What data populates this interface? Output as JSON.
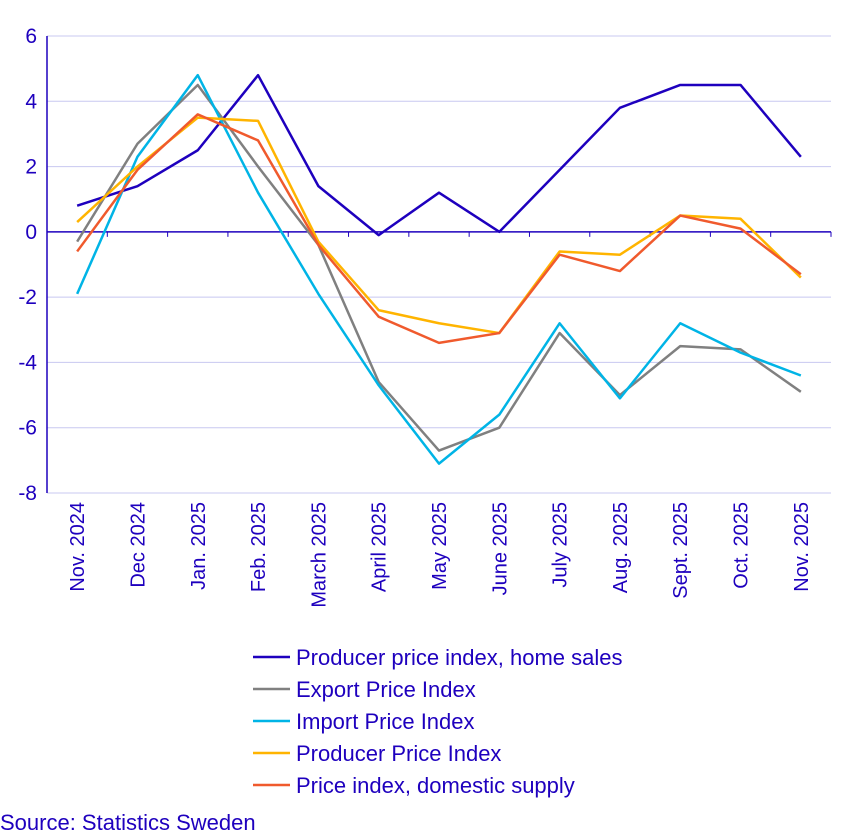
{
  "chart_data": {
    "type": "line",
    "categories": [
      "Nov. 2024",
      "Dec 2024",
      "Jan. 2025",
      "Feb. 2025",
      "March 2025",
      "April 2025",
      "May 2025",
      "June 2025",
      "July 2025",
      "Aug. 2025",
      "Sept. 2025",
      "Oct. 2025",
      "Nov. 2025"
    ],
    "ylim": [
      -8,
      6
    ],
    "yticks": [
      6,
      4,
      2,
      0,
      -2,
      -4,
      -6,
      -8
    ],
    "grid": true,
    "legend_position": "bottom",
    "series": [
      {
        "name": "Producer price index, home sales",
        "color": "#1e00be",
        "values": [
          0.8,
          1.4,
          2.5,
          4.8,
          1.4,
          -0.1,
          1.2,
          0.0,
          1.9,
          3.8,
          4.5,
          4.5,
          2.3
        ]
      },
      {
        "name": "Export Price Index",
        "color": "#808080",
        "values": [
          -0.3,
          2.7,
          4.5,
          2.0,
          -0.4,
          -4.6,
          -6.7,
          -6.0,
          -3.1,
          -5.0,
          -3.5,
          -3.6,
          -4.9
        ]
      },
      {
        "name": "Import Price Index",
        "color": "#00b4e6",
        "values": [
          -1.9,
          2.3,
          4.8,
          1.2,
          -1.9,
          -4.7,
          -7.1,
          -5.6,
          -2.8,
          -5.1,
          -2.8,
          -3.7,
          -4.4
        ]
      },
      {
        "name": "Producer Price Index",
        "color": "#ffb400",
        "values": [
          0.3,
          2.0,
          3.5,
          3.4,
          -0.3,
          -2.4,
          -2.8,
          -3.1,
          -0.6,
          -0.7,
          0.5,
          0.4,
          -1.4
        ]
      },
      {
        "name": "Price index, domestic supply",
        "color": "#f05a2d",
        "values": [
          -0.6,
          1.9,
          3.6,
          2.8,
          -0.4,
          -2.6,
          -3.4,
          -3.1,
          -0.7,
          -1.2,
          0.5,
          0.1,
          -1.3
        ]
      }
    ],
    "source": "Source: Statistics Sweden"
  }
}
